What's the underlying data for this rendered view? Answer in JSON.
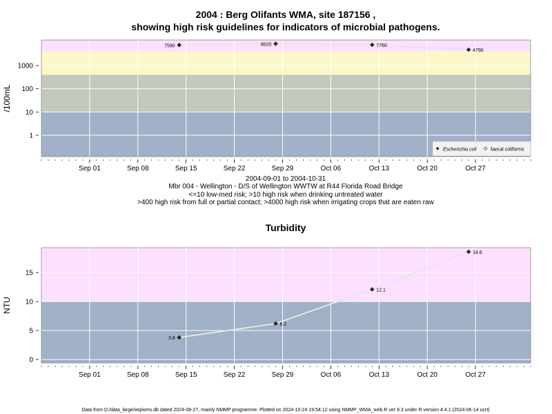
{
  "chart_data": [
    {
      "type": "line",
      "title_line1": "2004 : Berg Olifants WMA, site 187156 ,",
      "title_line2": "showing high risk guidelines for indicators of microbial pathogens.",
      "ylabel": "/100mL",
      "y_scale": "log10",
      "ylim": [
        0.12,
        12500
      ],
      "y_ticks": [
        1,
        10,
        100,
        1000
      ],
      "y_tick_labels": [
        "1",
        "10",
        "100",
        "1000"
      ],
      "xlim": [
        "2004-08-25",
        "2004-11-04"
      ],
      "x_ticks": [
        "2004-09-01",
        "2004-09-08",
        "2004-09-15",
        "2004-09-22",
        "2004-09-29",
        "2004-10-06",
        "2004-10-13",
        "2004-10-20",
        "2004-10-27"
      ],
      "x_tick_labels": [
        "Sep 01",
        "Sep 08",
        "Sep 15",
        "Sep 22",
        "Sep 29",
        "Oct 06",
        "Oct 13",
        "Oct 20",
        "Oct 27"
      ],
      "bands": [
        {
          "from": 0.12,
          "to": 10,
          "color": "#a0b1c8"
        },
        {
          "from": 10,
          "to": 400,
          "color": "#c2c9be"
        },
        {
          "from": 400,
          "to": 4000,
          "color": "#fdf7c8"
        },
        {
          "from": 4000,
          "to": 12500,
          "color": "#fde0fd"
        }
      ],
      "series": [
        {
          "name": "Escherichia coli",
          "x": [
            "2004-09-14",
            "2004-09-28",
            "2004-10-12",
            "2004-10-26"
          ],
          "values": [
            7590,
            8620,
            7760,
            4790
          ],
          "labels": [
            "7590",
            "8620",
            "7760",
            "4790"
          ]
        }
      ],
      "legend": [
        "Escherichia coli",
        "faecal coliforms"
      ],
      "legend_position": "bottom-right",
      "grid": true,
      "subtitle_lines": [
        "2004-09-01 to 2004-10-31",
        "Mbr 004 - Wellington - D/S of Wellington WWTW at R44 Florida Road Bridge",
        "<=10 low-med risk; >10 high risk when drinking untreated water",
        ">400 high risk from full or partial contact; >4000 high risk when irrigating crops that are eaten raw"
      ]
    },
    {
      "type": "line",
      "title": "Turbidity",
      "ylabel": "NTU",
      "ylim": [
        -0.6,
        19.3
      ],
      "y_ticks": [
        0,
        5,
        10,
        15
      ],
      "y_tick_labels": [
        "0",
        "5",
        "10",
        "15"
      ],
      "xlim": [
        "2004-08-25",
        "2004-11-04"
      ],
      "x_ticks": [
        "2004-09-01",
        "2004-09-08",
        "2004-09-15",
        "2004-09-22",
        "2004-09-29",
        "2004-10-06",
        "2004-10-13",
        "2004-10-20",
        "2004-10-27"
      ],
      "x_tick_labels": [
        "Sep 01",
        "Sep 08",
        "Sep 15",
        "Sep 22",
        "Sep 29",
        "Oct 06",
        "Oct 13",
        "Oct 20",
        "Oct 27"
      ],
      "bands": [
        {
          "from": -0.6,
          "to": 10,
          "color": "#a0b1c8"
        },
        {
          "from": 10,
          "to": 19.3,
          "color": "#fde0fd"
        }
      ],
      "series": [
        {
          "x": [
            "2004-09-14",
            "2004-09-28",
            "2004-10-12",
            "2004-10-26"
          ],
          "values": [
            3.8,
            6.2,
            12.1,
            18.6
          ],
          "labels": [
            "3.8",
            "6.2",
            "12.1",
            "18.6"
          ]
        }
      ],
      "grid": true
    }
  ],
  "footer": "Data from D:/data_large/wq/wms.db dated 2024-08-27, mainly NMMP programme. Plotted on 2024-10-24 19:54:12 using NMMP_WMA_web.R ver 9.3 under R version 4.4.1 (2024-06-14 ucrt)"
}
